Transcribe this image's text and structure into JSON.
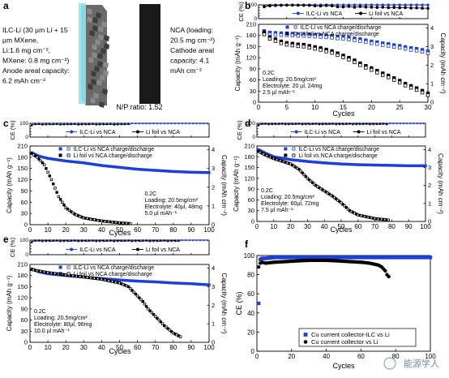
{
  "panel_a": {
    "label": "a",
    "anode_text": [
      "ILC-Li (30 µm Li + 15",
      "µm MXene,",
      "Li:1.6 mg cm⁻²,",
      "MXene: 0.8 mg cm⁻²)",
      "Anode areal capacity:",
      "6.2 mAh cm⁻²"
    ],
    "cathode_text": [
      "NCA (loading:",
      "20.5 mg cm⁻²)",
      "Cathode areal",
      "capacity: 4.1",
      "mAh cm⁻²"
    ],
    "np_ratio": "N/P ratio: 1.52",
    "colors": {
      "anode_front": "#8fe3f0",
      "anode_back": "#5a5a5a",
      "cathode": "#1a1a1a"
    }
  },
  "watermark": "能源学人",
  "colors": {
    "ilc": "#1f3fd8",
    "li": "#000000"
  },
  "chart_data": [
    {
      "panel": "b",
      "type": "scatter",
      "xmax": 30,
      "xticks": [
        0,
        5,
        10,
        15,
        20,
        25,
        30
      ],
      "xlabel": "Cycles",
      "ce_label": "CE (%)",
      "ce_ylim": [
        0,
        100
      ],
      "ce_ticks": [
        0,
        20,
        40,
        60,
        80,
        100
      ],
      "cap_label": "Capacity (mAh g⁻¹)",
      "cap_ylim": [
        0,
        210
      ],
      "cap_ticks": [
        0,
        30,
        60,
        90,
        120,
        150,
        180,
        210
      ],
      "areal_label": "Capacity (mAh cm⁻²)",
      "areal_ticks": [
        0,
        1,
        2,
        3,
        4
      ],
      "ce_legend": [
        "ILC-Li vs NCA",
        "Li foil vs NCA"
      ],
      "cap_legend": [
        "ILC-Li vs NCA charge/discharge",
        "Li foil vs NCA charge/discharge"
      ],
      "annotation": [
        "0.2C",
        "Loading: 20.5mg/cm²",
        "Electrolyte: 20 µl, 24mg",
        "2.5 µl mAh⁻¹"
      ],
      "ce_ilc": [
        [
          1,
          88
        ],
        [
          2,
          97
        ],
        [
          3,
          98
        ],
        [
          4,
          99
        ],
        [
          5,
          99
        ],
        [
          6,
          99
        ],
        [
          7,
          99
        ],
        [
          8,
          99
        ],
        [
          9,
          99
        ],
        [
          10,
          99
        ],
        [
          11,
          99
        ],
        [
          12,
          99
        ],
        [
          13,
          99
        ],
        [
          14,
          99
        ],
        [
          15,
          99
        ],
        [
          16,
          99
        ],
        [
          17,
          99
        ],
        [
          18,
          99
        ],
        [
          19,
          99
        ],
        [
          20,
          99
        ],
        [
          21,
          99
        ],
        [
          22,
          99
        ],
        [
          23,
          99
        ],
        [
          24,
          99
        ],
        [
          25,
          99
        ],
        [
          26,
          99
        ],
        [
          27,
          99
        ],
        [
          28,
          99
        ],
        [
          29,
          99
        ],
        [
          30,
          99
        ]
      ],
      "ce_li": [
        [
          1,
          86
        ],
        [
          2,
          93
        ],
        [
          3,
          95
        ],
        [
          4,
          96
        ],
        [
          5,
          97
        ],
        [
          6,
          97
        ],
        [
          7,
          97
        ],
        [
          8,
          96
        ],
        [
          9,
          96
        ],
        [
          10,
          93
        ],
        [
          11,
          92
        ],
        [
          12,
          95
        ],
        [
          13,
          93
        ],
        [
          14,
          86
        ],
        [
          15,
          85
        ],
        [
          16,
          89
        ],
        [
          17,
          82
        ],
        [
          18,
          88
        ],
        [
          19,
          84
        ],
        [
          20,
          83
        ],
        [
          21,
          81
        ],
        [
          22,
          83
        ],
        [
          23,
          80
        ],
        [
          24,
          81
        ],
        [
          25,
          79
        ],
        [
          26,
          80
        ],
        [
          27,
          77
        ],
        [
          28,
          78
        ],
        [
          29,
          76
        ],
        [
          30,
          75
        ]
      ],
      "cap_ilc": [
        [
          1,
          190
        ],
        [
          2,
          186
        ],
        [
          3,
          185
        ],
        [
          4,
          184
        ],
        [
          5,
          184
        ],
        [
          6,
          183
        ],
        [
          7,
          182
        ],
        [
          8,
          182
        ],
        [
          9,
          181
        ],
        [
          10,
          180
        ],
        [
          11,
          179
        ],
        [
          12,
          178
        ],
        [
          13,
          177
        ],
        [
          14,
          175
        ],
        [
          15,
          174
        ],
        [
          16,
          172
        ],
        [
          17,
          170
        ],
        [
          18,
          168
        ],
        [
          19,
          165
        ],
        [
          20,
          162
        ],
        [
          21,
          160
        ],
        [
          22,
          157
        ],
        [
          23,
          155
        ],
        [
          24,
          152
        ],
        [
          25,
          150
        ],
        [
          26,
          147
        ],
        [
          27,
          144
        ],
        [
          28,
          142
        ],
        [
          29,
          139
        ],
        [
          30,
          135
        ]
      ],
      "cap_li": [
        [
          1,
          188
        ],
        [
          2,
          176
        ],
        [
          3,
          170
        ],
        [
          4,
          164
        ],
        [
          5,
          160
        ],
        [
          6,
          158
        ],
        [
          7,
          156
        ],
        [
          8,
          155
        ],
        [
          9,
          152
        ],
        [
          10,
          149
        ],
        [
          11,
          146
        ],
        [
          12,
          142
        ],
        [
          13,
          138
        ],
        [
          14,
          132
        ],
        [
          15,
          126
        ],
        [
          16,
          120
        ],
        [
          17,
          113
        ],
        [
          18,
          105
        ],
        [
          19,
          98
        ],
        [
          20,
          92
        ],
        [
          21,
          85
        ],
        [
          22,
          78
        ],
        [
          23,
          72
        ],
        [
          24,
          65
        ],
        [
          25,
          58
        ],
        [
          26,
          50
        ],
        [
          27,
          44
        ],
        [
          28,
          38
        ],
        [
          29,
          31
        ],
        [
          30,
          24
        ]
      ]
    },
    {
      "panel": "c",
      "type": "scatter",
      "xmax": 100,
      "xticks": [
        0,
        10,
        20,
        30,
        40,
        50,
        60,
        70,
        80,
        90,
        100
      ],
      "xlabel": "Cycles",
      "ce_label": "CE (%)",
      "ce_ylim": [
        0,
        100
      ],
      "ce_ticks": [
        0,
        20,
        40,
        60,
        80,
        100
      ],
      "cap_label": "Capacity (mAh g⁻¹)",
      "cap_ylim": [
        0,
        210
      ],
      "cap_ticks": [
        0,
        30,
        60,
        90,
        120,
        150,
        180,
        210
      ],
      "areal_label": "Capacity (mAh cm⁻²)",
      "areal_ticks": [
        0,
        1,
        2,
        3,
        4
      ],
      "ce_legend": [
        "ILC-Li vs NCA",
        "Li foil vs NCA"
      ],
      "cap_legend": [
        "ILC-Li vs NCA charge/discharge",
        "Li foil vs NCA charge/discharge"
      ],
      "annotation": [
        "0.2C",
        "Loading: 20.5mg/cm²",
        "Electrolyte: 40µl, 48mg",
        "5.0 µl mAh⁻¹"
      ],
      "ce_ilc_range": [
        1,
        100,
        99
      ],
      "ce_li_range": [
        1,
        56,
        94
      ],
      "cap_ilc_curve": [
        [
          1,
          192
        ],
        [
          5,
          183
        ],
        [
          10,
          177
        ],
        [
          20,
          170
        ],
        [
          30,
          165
        ],
        [
          40,
          158
        ],
        [
          50,
          153
        ],
        [
          60,
          148
        ],
        [
          70,
          145
        ],
        [
          80,
          142
        ],
        [
          90,
          140
        ],
        [
          100,
          139
        ]
      ],
      "cap_li_curve": [
        [
          1,
          190
        ],
        [
          4,
          180
        ],
        [
          8,
          160
        ],
        [
          12,
          120
        ],
        [
          16,
          75
        ],
        [
          20,
          45
        ],
        [
          25,
          28
        ],
        [
          30,
          18
        ],
        [
          40,
          10
        ],
        [
          50,
          5
        ],
        [
          56,
          3
        ]
      ]
    },
    {
      "panel": "d",
      "type": "scatter",
      "xmax": 100,
      "xticks": [
        0,
        10,
        20,
        30,
        40,
        50,
        60,
        70,
        80,
        90,
        100
      ],
      "xlabel": "Cycles",
      "ce_label": "CE (%)",
      "ce_ylim": [
        0,
        100
      ],
      "ce_ticks": [
        0,
        20,
        40,
        60,
        80,
        100
      ],
      "cap_label": "Capacity (mAh g⁻¹)",
      "cap_ylim": [
        0,
        210
      ],
      "cap_ticks": [
        0,
        30,
        60,
        90,
        120,
        150,
        180,
        210
      ],
      "areal_label": "Capacity (mAh cm⁻²)",
      "areal_ticks": [
        0,
        1,
        2,
        3,
        4
      ],
      "ce_legend": [
        "ILC-Li vs NCA",
        "Li foil vs NCA"
      ],
      "cap_legend": [
        "ILC-Li vs NCA charge/discharge",
        "Li foil vs NCA charge/discharge"
      ],
      "annotation": [
        "0.2C",
        "Loading: 20.5mg/cm²",
        "Electrolyte: 60µl, 72mg",
        "7.5 µl mAh⁻¹"
      ],
      "ce_ilc_range": [
        1,
        100,
        99
      ],
      "ce_li_range": [
        1,
        78,
        96
      ],
      "cap_ilc_curve": [
        [
          1,
          200
        ],
        [
          5,
          190
        ],
        [
          10,
          180
        ],
        [
          20,
          172
        ],
        [
          30,
          167
        ],
        [
          40,
          163
        ],
        [
          50,
          160
        ],
        [
          60,
          158
        ],
        [
          70,
          157
        ],
        [
          80,
          156
        ],
        [
          90,
          155
        ],
        [
          100,
          155
        ]
      ],
      "cap_li_curve": [
        [
          1,
          195
        ],
        [
          5,
          185
        ],
        [
          10,
          175
        ],
        [
          20,
          160
        ],
        [
          25,
          145
        ],
        [
          30,
          120
        ],
        [
          35,
          100
        ],
        [
          40,
          85
        ],
        [
          45,
          70
        ],
        [
          50,
          52
        ],
        [
          55,
          30
        ],
        [
          60,
          18
        ],
        [
          70,
          8
        ],
        [
          78,
          4
        ]
      ]
    },
    {
      "panel": "e",
      "type": "scatter",
      "xmax": 100,
      "xticks": [
        0,
        10,
        20,
        30,
        40,
        50,
        60,
        70,
        80,
        90,
        100
      ],
      "xlabel": "Cycles",
      "ce_label": "CE (%)",
      "ce_ylim": [
        0,
        100
      ],
      "ce_ticks": [
        0,
        20,
        40,
        60,
        80,
        100
      ],
      "cap_label": "Capacity (mAh g⁻¹)",
      "cap_ylim": [
        0,
        210
      ],
      "cap_ticks": [
        0,
        30,
        60,
        90,
        120,
        150,
        180,
        210
      ],
      "areal_label": "Capacity (mAh cm⁻²)",
      "areal_ticks": [
        0,
        1,
        2,
        3,
        4
      ],
      "ce_legend": [
        "ILC-Li vs NCA",
        "Li foil vs NCA"
      ],
      "cap_legend": [
        "ILC-Li vs NCA charge/discharge",
        "Li foil vs NCA charge/discharge"
      ],
      "annotation": [
        "0.2C",
        "Loading: 20.5mg/cm²",
        "Electrolyte: 80µl, 96mg",
        "10.0 µl mAh⁻¹"
      ],
      "ce_ilc_range": [
        1,
        100,
        99
      ],
      "ce_li_range": [
        1,
        84,
        96
      ],
      "cap_ilc_curve": [
        [
          1,
          198
        ],
        [
          5,
          190
        ],
        [
          10,
          185
        ],
        [
          20,
          180
        ],
        [
          30,
          176
        ],
        [
          40,
          172
        ],
        [
          50,
          168
        ],
        [
          60,
          165
        ],
        [
          70,
          163
        ],
        [
          80,
          160
        ],
        [
          90,
          158
        ],
        [
          100,
          155
        ]
      ],
      "cap_li_curve": [
        [
          1,
          196
        ],
        [
          10,
          188
        ],
        [
          20,
          182
        ],
        [
          30,
          176
        ],
        [
          40,
          170
        ],
        [
          50,
          160
        ],
        [
          55,
          150
        ],
        [
          60,
          125
        ],
        [
          63,
          110
        ],
        [
          66,
          90
        ],
        [
          70,
          70
        ],
        [
          75,
          45
        ],
        [
          80,
          25
        ],
        [
          84,
          15
        ]
      ]
    },
    {
      "panel": "f",
      "type": "scatter",
      "xmax": 100,
      "xticks": [
        0,
        20,
        40,
        60,
        80,
        100
      ],
      "xlabel": "Cycles",
      "ylabel": "CE (%)",
      "ylim": [
        0,
        100
      ],
      "yticks": [
        0,
        20,
        40,
        60,
        80,
        100
      ],
      "legend": [
        "Cu current collector-ILC vs Li",
        "Cu current collector vs Li"
      ],
      "ilc": [
        [
          1,
          50
        ],
        [
          2,
          96
        ],
        [
          3,
          97
        ],
        [
          5,
          97
        ],
        [
          10,
          98
        ],
        [
          20,
          98
        ],
        [
          40,
          98
        ],
        [
          60,
          98
        ],
        [
          80,
          98
        ],
        [
          100,
          98
        ]
      ],
      "cu": [
        [
          1,
          88
        ],
        [
          2,
          92
        ],
        [
          3,
          93
        ],
        [
          5,
          92
        ],
        [
          10,
          93
        ],
        [
          20,
          94
        ],
        [
          30,
          95
        ],
        [
          40,
          95
        ],
        [
          50,
          94
        ],
        [
          60,
          93
        ],
        [
          65,
          92
        ],
        [
          70,
          90
        ],
        [
          72,
          88
        ],
        [
          74,
          84
        ],
        [
          75,
          80
        ],
        [
          76,
          78
        ]
      ]
    }
  ]
}
